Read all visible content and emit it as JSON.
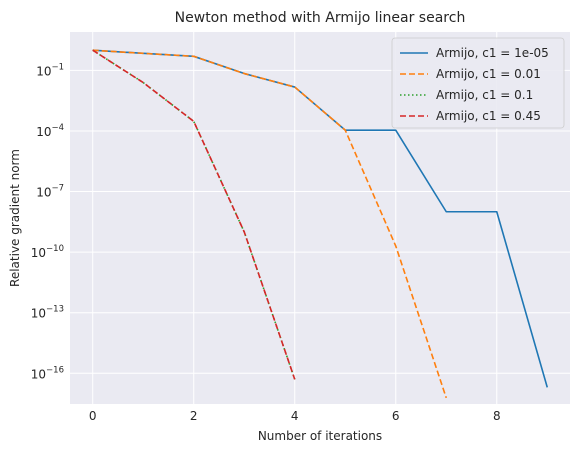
{
  "chart_data": {
    "type": "line",
    "title": "Newton method with Armijo linear search",
    "xlabel": "Number of iterations",
    "ylabel": "Relative gradient norm",
    "yscale": "log",
    "xlim": [
      -0.45,
      9.45
    ],
    "ylim": [
      3e-18,
      8
    ],
    "x_ticks": [
      0,
      2,
      4,
      6,
      8
    ],
    "y_ticks": [
      {
        "value": 0.1,
        "base": "10",
        "exp": "−1"
      },
      {
        "value": 0.0001,
        "base": "10",
        "exp": "−4"
      },
      {
        "value": 1e-07,
        "base": "10",
        "exp": "−7"
      },
      {
        "value": 1e-10,
        "base": "10",
        "exp": "−10"
      },
      {
        "value": 1e-13,
        "base": "10",
        "exp": "−13"
      },
      {
        "value": 1e-16,
        "base": "10",
        "exp": "−16"
      }
    ],
    "grid": true,
    "background": "#eaeaf2",
    "legend_position": "top-right",
    "series": [
      {
        "name": "Armijo, c1 = 1e-05",
        "color": "#1f77b4",
        "dash": "solid",
        "x": [
          0,
          1,
          2,
          3,
          4,
          5,
          6,
          7,
          8,
          9
        ],
        "y": [
          1,
          0.7,
          0.5,
          0.07,
          0.015,
          0.00011,
          0.00011,
          1e-08,
          1e-08,
          2e-17
        ]
      },
      {
        "name": "Armijo, c1 = 0.01",
        "color": "#ff7f0e",
        "dash": "dashed",
        "x": [
          0,
          1,
          2,
          3,
          4,
          5,
          6,
          7
        ],
        "y": [
          1,
          0.7,
          0.5,
          0.07,
          0.015,
          0.00011,
          2e-10,
          6e-18
        ]
      },
      {
        "name": "Armijo, c1 = 0.1",
        "color": "#2ca02c",
        "dash": "dotted",
        "x": [
          0,
          1,
          2,
          3,
          4
        ],
        "y": [
          1,
          0.025,
          0.0003,
          1e-09,
          5e-17
        ]
      },
      {
        "name": "Armijo, c1 = 0.45",
        "color": "#d62728",
        "dash": "dashed",
        "x": [
          0,
          1,
          2,
          3,
          4
        ],
        "y": [
          1,
          0.025,
          0.0003,
          1e-09,
          5e-17
        ]
      }
    ]
  }
}
